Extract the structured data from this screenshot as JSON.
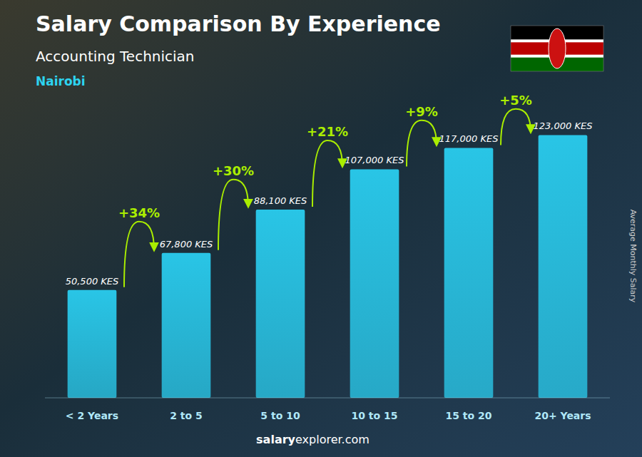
{
  "chart_data": {
    "type": "bar",
    "title": "Salary Comparison By Experience",
    "subtitle": "Accounting Technician",
    "city": "Nairobi",
    "ylabel": "Average Monthly Salary",
    "footer": [
      "salary",
      "explorer.com"
    ],
    "categories": [
      "< 2 Years",
      "2 to 5",
      "5 to 10",
      "10 to 15",
      "15 to 20",
      "20+ Years"
    ],
    "values": [
      50500,
      67800,
      88100,
      107000,
      117000,
      123000
    ],
    "value_labels": [
      "50,500 KES",
      "67,800 KES",
      "88,100 KES",
      "107,000 KES",
      "117,000 KES",
      "123,000 KES"
    ],
    "data_labels": true,
    "annotations": [
      "+34%",
      "+30%",
      "+21%",
      "+9%",
      "+5%"
    ],
    "color": "#29c5e6",
    "ylim": [
      0,
      132840
    ],
    "grid": false,
    "tick_labels": false
  }
}
